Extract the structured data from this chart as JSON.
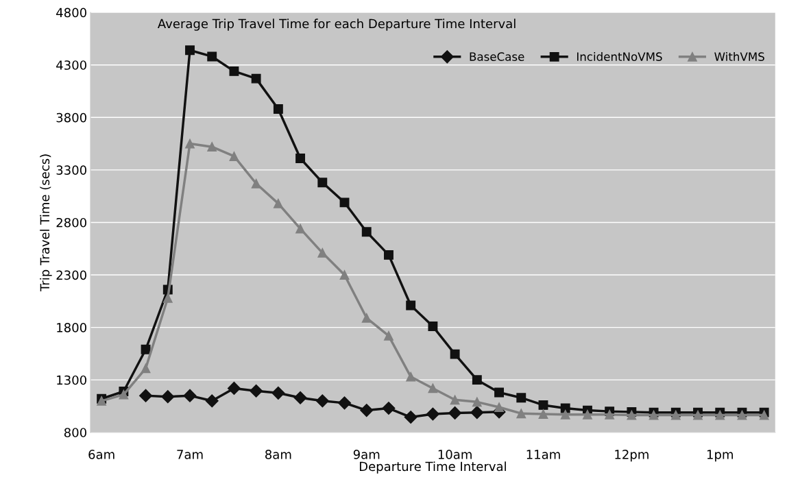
{
  "chart_data": {
    "type": "line",
    "title": "Average Trip Travel Time for each Departure Time Interval",
    "xlabel": "Departure Time Interval",
    "ylabel": "Trip Travel Time (secs)",
    "categories": [
      "6am",
      null,
      null,
      null,
      "7am",
      null,
      null,
      null,
      "8am",
      null,
      null,
      null,
      "9am",
      null,
      null,
      null,
      "10am",
      null,
      null,
      null,
      "11am",
      null,
      null,
      null,
      "12pm",
      null,
      null,
      null,
      "1pm",
      null,
      null
    ],
    "series": [
      {
        "name": "BaseCase",
        "color": "#111111",
        "marker": "diamond",
        "values": [
          null,
          null,
          1150,
          1140,
          1150,
          1100,
          1220,
          1195,
          1175,
          1130,
          1100,
          1080,
          1010,
          1030,
          945,
          975,
          985,
          990,
          995,
          null,
          null,
          null,
          null,
          null,
          null,
          null,
          null,
          null,
          null,
          null,
          null
        ]
      },
      {
        "name": "IncidentNoVMS",
        "color": "#111111",
        "marker": "square",
        "values": [
          1120,
          1190,
          1590,
          2160,
          4440,
          4380,
          4240,
          4170,
          3880,
          3410,
          3180,
          2990,
          2710,
          2490,
          2010,
          1810,
          1545,
          1300,
          1180,
          1130,
          1060,
          1030,
          1010,
          1000,
          995,
          990,
          990,
          990,
          990,
          990,
          990
        ]
      },
      {
        "name": "WithVMS",
        "color": "#808080",
        "marker": "triangle",
        "values": [
          1100,
          1160,
          1410,
          2080,
          3550,
          3520,
          3430,
          3170,
          2980,
          2740,
          2510,
          2300,
          1890,
          1720,
          1330,
          1220,
          1110,
          1090,
          1040,
          980,
          975,
          970,
          970,
          970,
          965,
          965,
          965,
          965,
          965,
          965,
          965
        ]
      }
    ],
    "ylim": [
      800,
      4800
    ],
    "yticks": [
      800,
      1300,
      1800,
      2300,
      2800,
      3300,
      3800,
      4300,
      4800
    ],
    "grid": "y",
    "legend": "top right",
    "line_style": "solid"
  }
}
